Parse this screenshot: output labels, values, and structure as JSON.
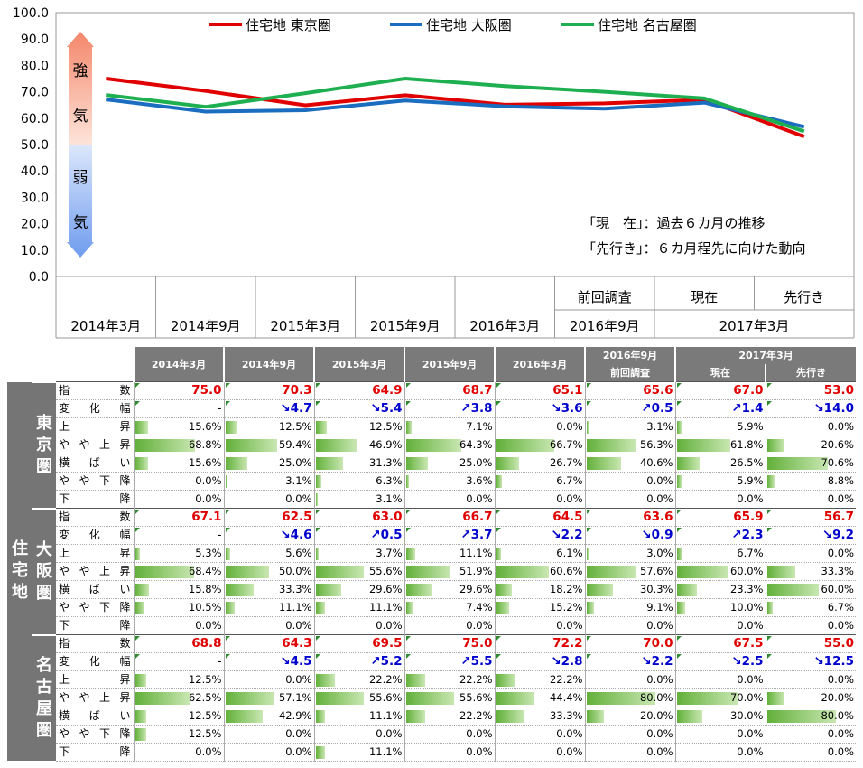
{
  "chart_data": {
    "type": "line",
    "title": "",
    "xlabel": "",
    "ylabel": "",
    "ylim": [
      0,
      100
    ],
    "yticks": [
      "100.0",
      "90.0",
      "80.0",
      "70.0",
      "60.0",
      "50.0",
      "40.0",
      "30.0",
      "20.0",
      "10.0",
      "0.0"
    ],
    "categories": [
      "2014年3月",
      "2014年9月",
      "2015年3月",
      "2015年9月",
      "2016年3月",
      "2016年9月",
      "2017年3月 現在",
      "2017年3月 先行き"
    ],
    "x_top_labels": [
      "",
      "",
      "",
      "",
      "",
      "前回調査",
      "現在",
      "先行き"
    ],
    "x_bottom_labels": [
      "2014年3月",
      "2014年9月",
      "2015年3月",
      "2015年9月",
      "2016年3月",
      "2016年9月",
      "2017年3月"
    ],
    "series": [
      {
        "name": "住宅地 東京圏",
        "color": "#e00000",
        "values": [
          75.0,
          70.3,
          64.9,
          68.7,
          65.1,
          65.6,
          67.0,
          53.0
        ]
      },
      {
        "name": "住宅地 大阪圏",
        "color": "#1a6dbf",
        "values": [
          67.1,
          62.5,
          63.0,
          66.7,
          64.5,
          63.6,
          65.9,
          56.7
        ]
      },
      {
        "name": "住宅地 名古屋圏",
        "color": "#1eb050",
        "values": [
          68.8,
          64.3,
          69.5,
          75.0,
          72.2,
          70.0,
          67.5,
          55.0
        ]
      }
    ],
    "arrow_labels": [
      "強",
      "気",
      "弱",
      "気"
    ],
    "notes": [
      "「現　在」：過去６カ月の推移",
      "「先行き」：６カ月程先に向けた動向"
    ],
    "grid": false,
    "legend_position": "top"
  },
  "table": {
    "side_label": "住宅地",
    "header_top": [
      "2014年3月",
      "2014年9月",
      "2015年3月",
      "2015年9月",
      "2016年3月",
      "2016年9月",
      "2017年3月"
    ],
    "header_sub": [
      "前回調査",
      "現在",
      "先行き"
    ],
    "row_labels": [
      "指数",
      "変化幅",
      "上昇",
      "やや上昇",
      "横ばい",
      "やや下降",
      "下降"
    ],
    "row_label_chars": [
      [
        "指",
        "数"
      ],
      [
        "変",
        "化",
        "幅"
      ],
      [
        "上",
        "昇"
      ],
      [
        "や",
        "や",
        "上",
        "昇"
      ],
      [
        "横",
        "ば",
        "い"
      ],
      [
        "や",
        "や",
        "下",
        "降"
      ],
      [
        "下",
        "降"
      ]
    ],
    "regions": [
      {
        "name": "東京圏",
        "rows": [
          [
            "75.0",
            "70.3",
            "64.9",
            "68.7",
            "65.1",
            "65.6",
            "67.0",
            "53.0"
          ],
          [
            "-",
            "↘4.7",
            "↘5.4",
            "↗3.8",
            "↘3.6",
            "↗0.5",
            "↗1.4",
            "↘14.0"
          ],
          [
            "15.6%",
            "12.5%",
            "12.5%",
            "7.1%",
            "0.0%",
            "3.1%",
            "5.9%",
            "0.0%"
          ],
          [
            "68.8%",
            "59.4%",
            "46.9%",
            "64.3%",
            "66.7%",
            "56.3%",
            "61.8%",
            "20.6%"
          ],
          [
            "15.6%",
            "25.0%",
            "31.3%",
            "25.0%",
            "26.7%",
            "40.6%",
            "26.5%",
            "70.6%"
          ],
          [
            "0.0%",
            "3.1%",
            "6.3%",
            "3.6%",
            "6.7%",
            "0.0%",
            "5.9%",
            "8.8%"
          ],
          [
            "0.0%",
            "0.0%",
            "3.1%",
            "0.0%",
            "0.0%",
            "0.0%",
            "0.0%",
            "0.0%"
          ]
        ]
      },
      {
        "name": "大阪圏",
        "rows": [
          [
            "67.1",
            "62.5",
            "63.0",
            "66.7",
            "64.5",
            "63.6",
            "65.9",
            "56.7"
          ],
          [
            "-",
            "↘4.6",
            "↗0.5",
            "↗3.7",
            "↘2.2",
            "↘0.9",
            "↗2.3",
            "↘9.2"
          ],
          [
            "5.3%",
            "5.6%",
            "3.7%",
            "11.1%",
            "6.1%",
            "3.0%",
            "6.7%",
            "0.0%"
          ],
          [
            "68.4%",
            "50.0%",
            "55.6%",
            "51.9%",
            "60.6%",
            "57.6%",
            "60.0%",
            "33.3%"
          ],
          [
            "15.8%",
            "33.3%",
            "29.6%",
            "29.6%",
            "18.2%",
            "30.3%",
            "23.3%",
            "60.0%"
          ],
          [
            "10.5%",
            "11.1%",
            "11.1%",
            "7.4%",
            "15.2%",
            "9.1%",
            "10.0%",
            "6.7%"
          ],
          [
            "0.0%",
            "0.0%",
            "0.0%",
            "0.0%",
            "0.0%",
            "0.0%",
            "0.0%",
            "0.0%"
          ]
        ]
      },
      {
        "name": "名古屋圏",
        "rows": [
          [
            "68.8",
            "64.3",
            "69.5",
            "75.0",
            "72.2",
            "70.0",
            "67.5",
            "55.0"
          ],
          [
            "-",
            "↘4.5",
            "↗5.2",
            "↗5.5",
            "↘2.8",
            "↘2.2",
            "↘2.5",
            "↘12.5"
          ],
          [
            "12.5%",
            "0.0%",
            "22.2%",
            "22.2%",
            "22.2%",
            "0.0%",
            "0.0%",
            "0.0%"
          ],
          [
            "62.5%",
            "57.1%",
            "55.6%",
            "55.6%",
            "44.4%",
            "80.0%",
            "70.0%",
            "20.0%"
          ],
          [
            "12.5%",
            "42.9%",
            "11.1%",
            "22.2%",
            "33.3%",
            "20.0%",
            "30.0%",
            "80.0%"
          ],
          [
            "12.5%",
            "0.0%",
            "0.0%",
            "0.0%",
            "0.0%",
            "0.0%",
            "0.0%",
            "0.0%"
          ],
          [
            "0.0%",
            "0.0%",
            "11.1%",
            "0.0%",
            "0.0%",
            "0.0%",
            "0.0%",
            "0.0%"
          ]
        ]
      }
    ]
  }
}
